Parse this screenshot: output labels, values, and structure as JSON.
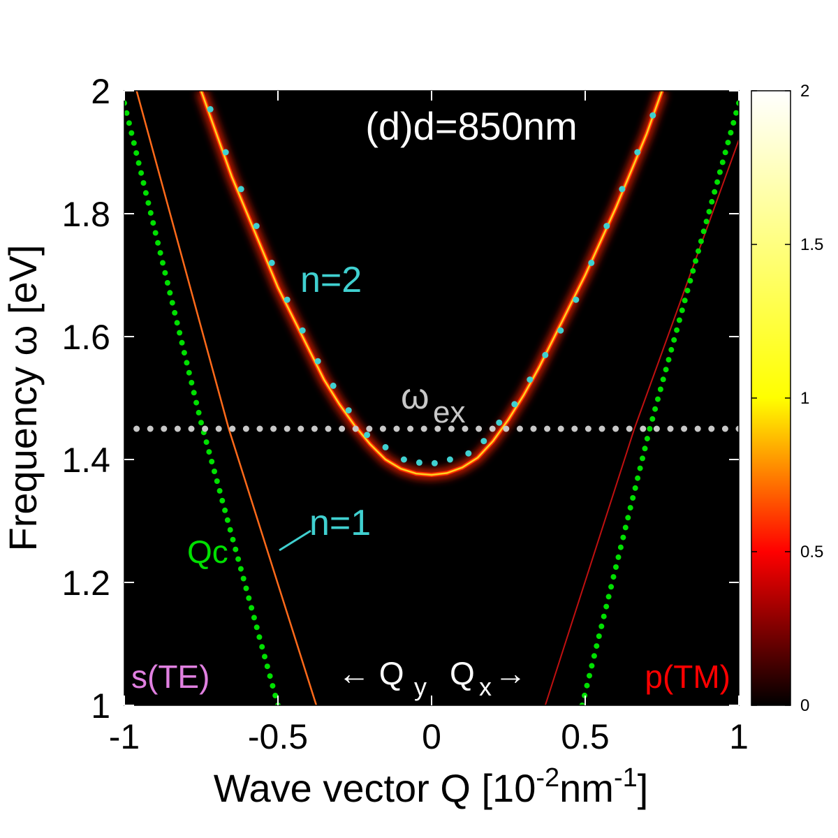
{
  "chart_data": {
    "type": "heatmap",
    "panel_label": "(d)d=850nm",
    "xlabel": {
      "main": "Wave vector Q [10",
      "sup1": "-2",
      "mid": "nm",
      "sup2": "-1",
      "end": "]"
    },
    "ylabel": "Frequency ω [eV]",
    "xlim": [
      -1,
      1
    ],
    "ylim": [
      1,
      2
    ],
    "x_ticks": [
      -1,
      -0.5,
      0,
      0.5,
      1
    ],
    "x_tick_labels": [
      "-1",
      "-0.5",
      "0",
      "0.5",
      "1"
    ],
    "y_ticks": [
      1,
      1.2,
      1.4,
      1.6,
      1.8,
      2
    ],
    "y_tick_labels": [
      "1",
      "1.2",
      "1.4",
      "1.6",
      "1.8",
      "2"
    ],
    "colorbar": {
      "range": [
        0,
        2
      ],
      "ticks": [
        0,
        0.5,
        1,
        1.5,
        2
      ],
      "tick_labels": [
        "0",
        "0.5",
        "1",
        "1.5",
        "2"
      ],
      "colormap": [
        "#000000",
        "#ff0000",
        "#ffff00",
        "#ffffff"
      ]
    },
    "colors": {
      "background": "#000000",
      "light_line": "#00e000",
      "exciton_line": "#c8c8c8",
      "fit_points": "#40d0d0",
      "branch": "#ff2000",
      "te_label": "#e080e0",
      "tm_label": "#ff0000"
    },
    "annotations": {
      "n2": "n=2",
      "n1": "n=1",
      "qc": "Qc",
      "omega_ex": "ω",
      "omega_ex_sub": "ex",
      "te": "s(TE)",
      "tm": "p(TM)",
      "qy": "← Q",
      "qy_sub": "y",
      "qx": "Q",
      "qx_sub": "x",
      "qx_arrow": "→"
    },
    "exciton_energy": 1.45,
    "light_line_left": [
      [
        -1.0,
        1.98
      ],
      [
        -0.75,
        1.46
      ],
      [
        -0.5,
        1.0
      ]
    ],
    "light_line_right": [
      [
        0.49,
        1.0
      ],
      [
        0.71,
        1.45
      ],
      [
        1.0,
        1.98
      ]
    ],
    "n2_dots": [
      [
        -0.72,
        1.97
      ],
      [
        -0.67,
        1.9
      ],
      [
        -0.62,
        1.84
      ],
      [
        -0.57,
        1.78
      ],
      [
        -0.52,
        1.72
      ],
      [
        -0.47,
        1.66
      ],
      [
        -0.42,
        1.61
      ],
      [
        -0.37,
        1.56
      ],
      [
        -0.32,
        1.52
      ],
      [
        -0.27,
        1.48
      ],
      [
        -0.21,
        1.44
      ],
      [
        -0.15,
        1.42
      ],
      [
        -0.09,
        1.4
      ],
      [
        -0.04,
        1.395
      ],
      [
        0.01,
        1.394
      ],
      [
        0.06,
        1.4
      ],
      [
        0.12,
        1.41
      ],
      [
        0.17,
        1.43
      ],
      [
        0.22,
        1.46
      ],
      [
        0.27,
        1.49
      ],
      [
        0.32,
        1.53
      ],
      [
        0.37,
        1.57
      ],
      [
        0.42,
        1.61
      ],
      [
        0.47,
        1.66
      ],
      [
        0.52,
        1.72
      ],
      [
        0.57,
        1.78
      ],
      [
        0.62,
        1.84
      ],
      [
        0.67,
        1.9
      ],
      [
        0.72,
        1.96
      ]
    ],
    "branch_upper": [
      [
        -0.75,
        2.0
      ],
      [
        -0.7,
        1.93
      ],
      [
        -0.65,
        1.86
      ],
      [
        -0.6,
        1.8
      ],
      [
        -0.55,
        1.74
      ],
      [
        -0.5,
        1.68
      ],
      [
        -0.45,
        1.63
      ],
      [
        -0.4,
        1.58
      ],
      [
        -0.35,
        1.53
      ],
      [
        -0.3,
        1.49
      ],
      [
        -0.25,
        1.455
      ],
      [
        -0.2,
        1.425
      ],
      [
        -0.15,
        1.4
      ],
      [
        -0.1,
        1.385
      ],
      [
        -0.05,
        1.377
      ],
      [
        0.0,
        1.375
      ],
      [
        0.05,
        1.378
      ],
      [
        0.1,
        1.387
      ],
      [
        0.15,
        1.403
      ],
      [
        0.2,
        1.43
      ],
      [
        0.25,
        1.465
      ],
      [
        0.3,
        1.505
      ],
      [
        0.35,
        1.55
      ],
      [
        0.4,
        1.6
      ],
      [
        0.45,
        1.65
      ],
      [
        0.5,
        1.7
      ],
      [
        0.55,
        1.755
      ],
      [
        0.6,
        1.81
      ],
      [
        0.65,
        1.87
      ],
      [
        0.7,
        1.93
      ],
      [
        0.75,
        2.0
      ]
    ],
    "branch_lower_left": [
      [
        -0.96,
        2.0
      ],
      [
        -0.66,
        1.45
      ],
      [
        -0.375,
        1.0
      ]
    ],
    "branch_lower_right": [
      [
        0.37,
        1.0
      ],
      [
        0.66,
        1.45
      ],
      [
        1.0,
        1.92
      ]
    ]
  }
}
